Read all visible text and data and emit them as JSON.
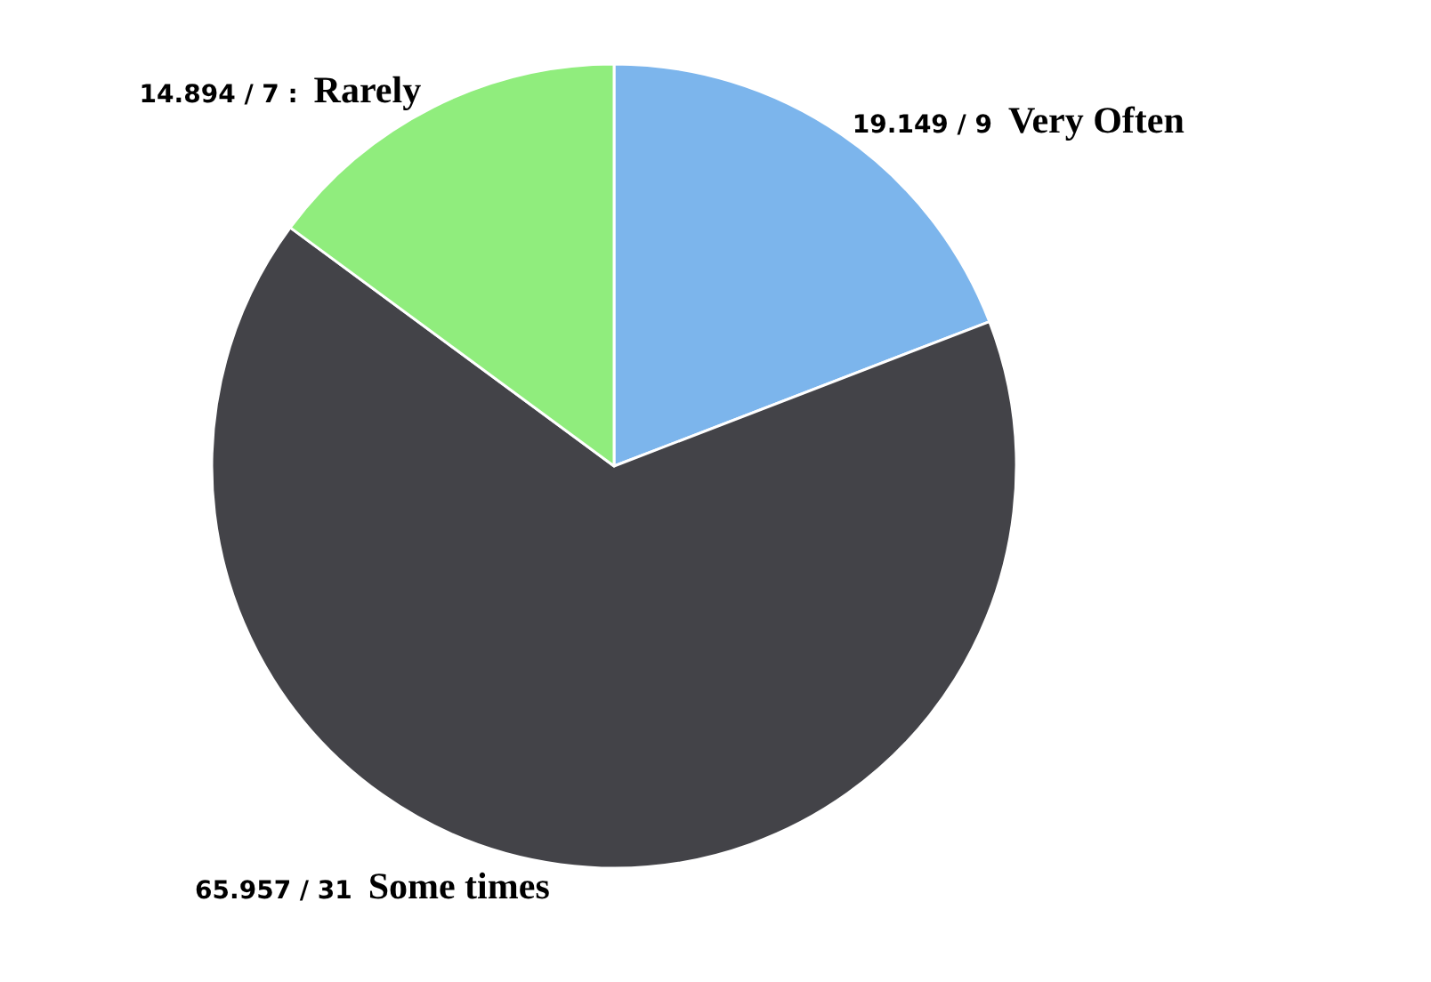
{
  "chart_data": {
    "type": "pie",
    "categories": [
      "Very Often",
      "Some times",
      "Rarely"
    ],
    "values": [
      9,
      31,
      7
    ],
    "colors": [
      "#7cb5ec",
      "#434348",
      "#90ed7d"
    ],
    "value_labels": [
      "19.149 / 9",
      "65.957 / 31",
      "14.894 / 7 :"
    ]
  }
}
